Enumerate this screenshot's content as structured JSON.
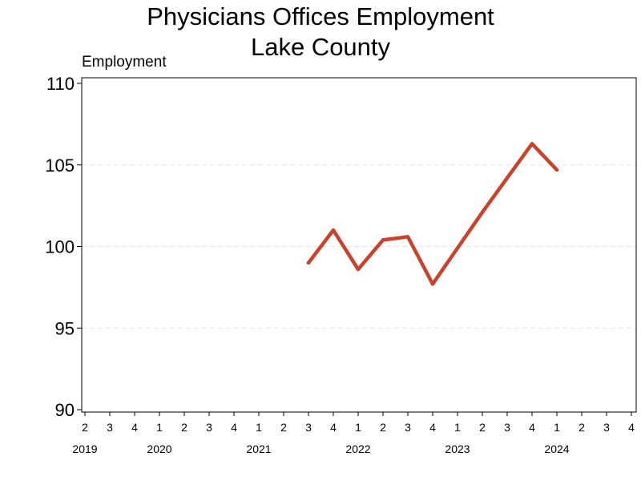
{
  "chart_data": {
    "type": "line",
    "title": "Physicians Offices Employment",
    "subtitle": "Lake County",
    "ylabel": "Employment",
    "xlabel": "",
    "ylim": [
      90,
      110
    ],
    "yticks": [
      90,
      95,
      100,
      105,
      110
    ],
    "grid": "horizontal dashed",
    "x_quarter_ticks": [
      "2",
      "3",
      "4",
      "1",
      "2",
      "3",
      "4",
      "1",
      "2",
      "3",
      "4",
      "1",
      "2",
      "3",
      "4",
      "1",
      "2",
      "3",
      "4",
      "1",
      "2",
      "3",
      "4"
    ],
    "x_year_labels": [
      {
        "label": "2019",
        "at_tick": 0
      },
      {
        "label": "2020",
        "at_tick": 3
      },
      {
        "label": "2021",
        "at_tick": 7
      },
      {
        "label": "2022",
        "at_tick": 11
      },
      {
        "label": "2023",
        "at_tick": 15
      },
      {
        "label": "2024",
        "at_tick": 19
      }
    ],
    "series": [
      {
        "color": "#c8432e",
        "points": [
          {
            "x": "2021 Q3",
            "y": 99.0
          },
          {
            "x": "2021 Q4",
            "y": 101.0
          },
          {
            "x": "2022 Q1",
            "y": 98.6
          },
          {
            "x": "2022 Q2",
            "y": 100.4
          },
          {
            "x": "2022 Q3",
            "y": 100.6
          },
          {
            "x": "2022 Q4",
            "y": 97.7
          },
          {
            "x": "2023 Q1",
            "y": 99.9
          },
          {
            "x": "2023 Q2",
            "y": 102.1
          },
          {
            "x": "2023 Q3",
            "y": 104.2
          },
          {
            "x": "2023 Q4",
            "y": 106.3
          },
          {
            "x": "2024 Q1",
            "y": 104.7
          }
        ]
      }
    ]
  }
}
